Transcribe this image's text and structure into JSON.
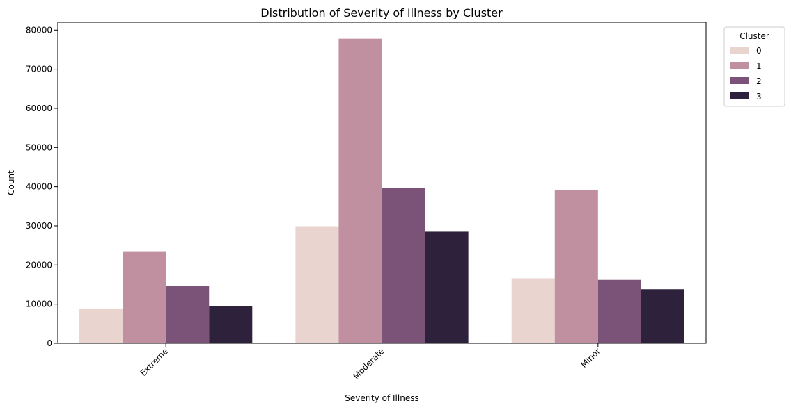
{
  "chart_data": {
    "type": "bar",
    "title": "Distribution of Severity of Illness by Cluster",
    "xlabel": "Severity of Illness",
    "ylabel": "Count",
    "categories": [
      "Extreme",
      "Moderate",
      "Minor"
    ],
    "ylim": [
      0,
      82000
    ],
    "yticks": [
      0,
      10000,
      20000,
      30000,
      40000,
      50000,
      60000,
      70000,
      80000
    ],
    "x_tick_rotation_deg": 45,
    "grid": false,
    "legend": {
      "title": "Cluster",
      "placement": "outside-top-right"
    },
    "series": [
      {
        "name": "0",
        "color": "#e9d4d0",
        "values": [
          8900,
          29900,
          16600
        ]
      },
      {
        "name": "1",
        "color": "#c190a0",
        "values": [
          23500,
          77800,
          39200
        ]
      },
      {
        "name": "2",
        "color": "#7b5278",
        "values": [
          14700,
          39600,
          16200
        ]
      },
      {
        "name": "3",
        "color": "#2e213b",
        "values": [
          9500,
          28500,
          13800
        ]
      }
    ]
  }
}
